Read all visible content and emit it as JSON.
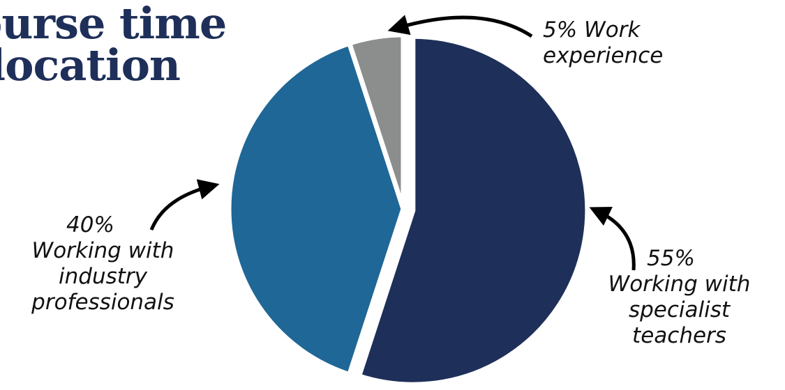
{
  "title_lines": [
    "ourse time",
    "llocation"
  ],
  "colors": {
    "title": "#1e2f59",
    "arrow": "#000000"
  },
  "chart_data": {
    "type": "pie",
    "title": "ourse time llocation",
    "slices": [
      {
        "label_pct": "55%",
        "label_lines": [
          "Working with",
          "specialist",
          "teachers"
        ],
        "value": 55,
        "color": "#1e2f59",
        "exploded": true
      },
      {
        "label_pct": "40%",
        "label_lines": [
          "Working with",
          "industry",
          "professionals"
        ],
        "value": 40,
        "color": "#1f6796",
        "exploded": false
      },
      {
        "label_pct": "5%",
        "label_lines": [
          "Work",
          "experience"
        ],
        "value": 5,
        "color": "#8c8e8d",
        "exploded": false
      }
    ],
    "start_angle_deg": 0,
    "direction": "clockwise",
    "legend": "none"
  }
}
